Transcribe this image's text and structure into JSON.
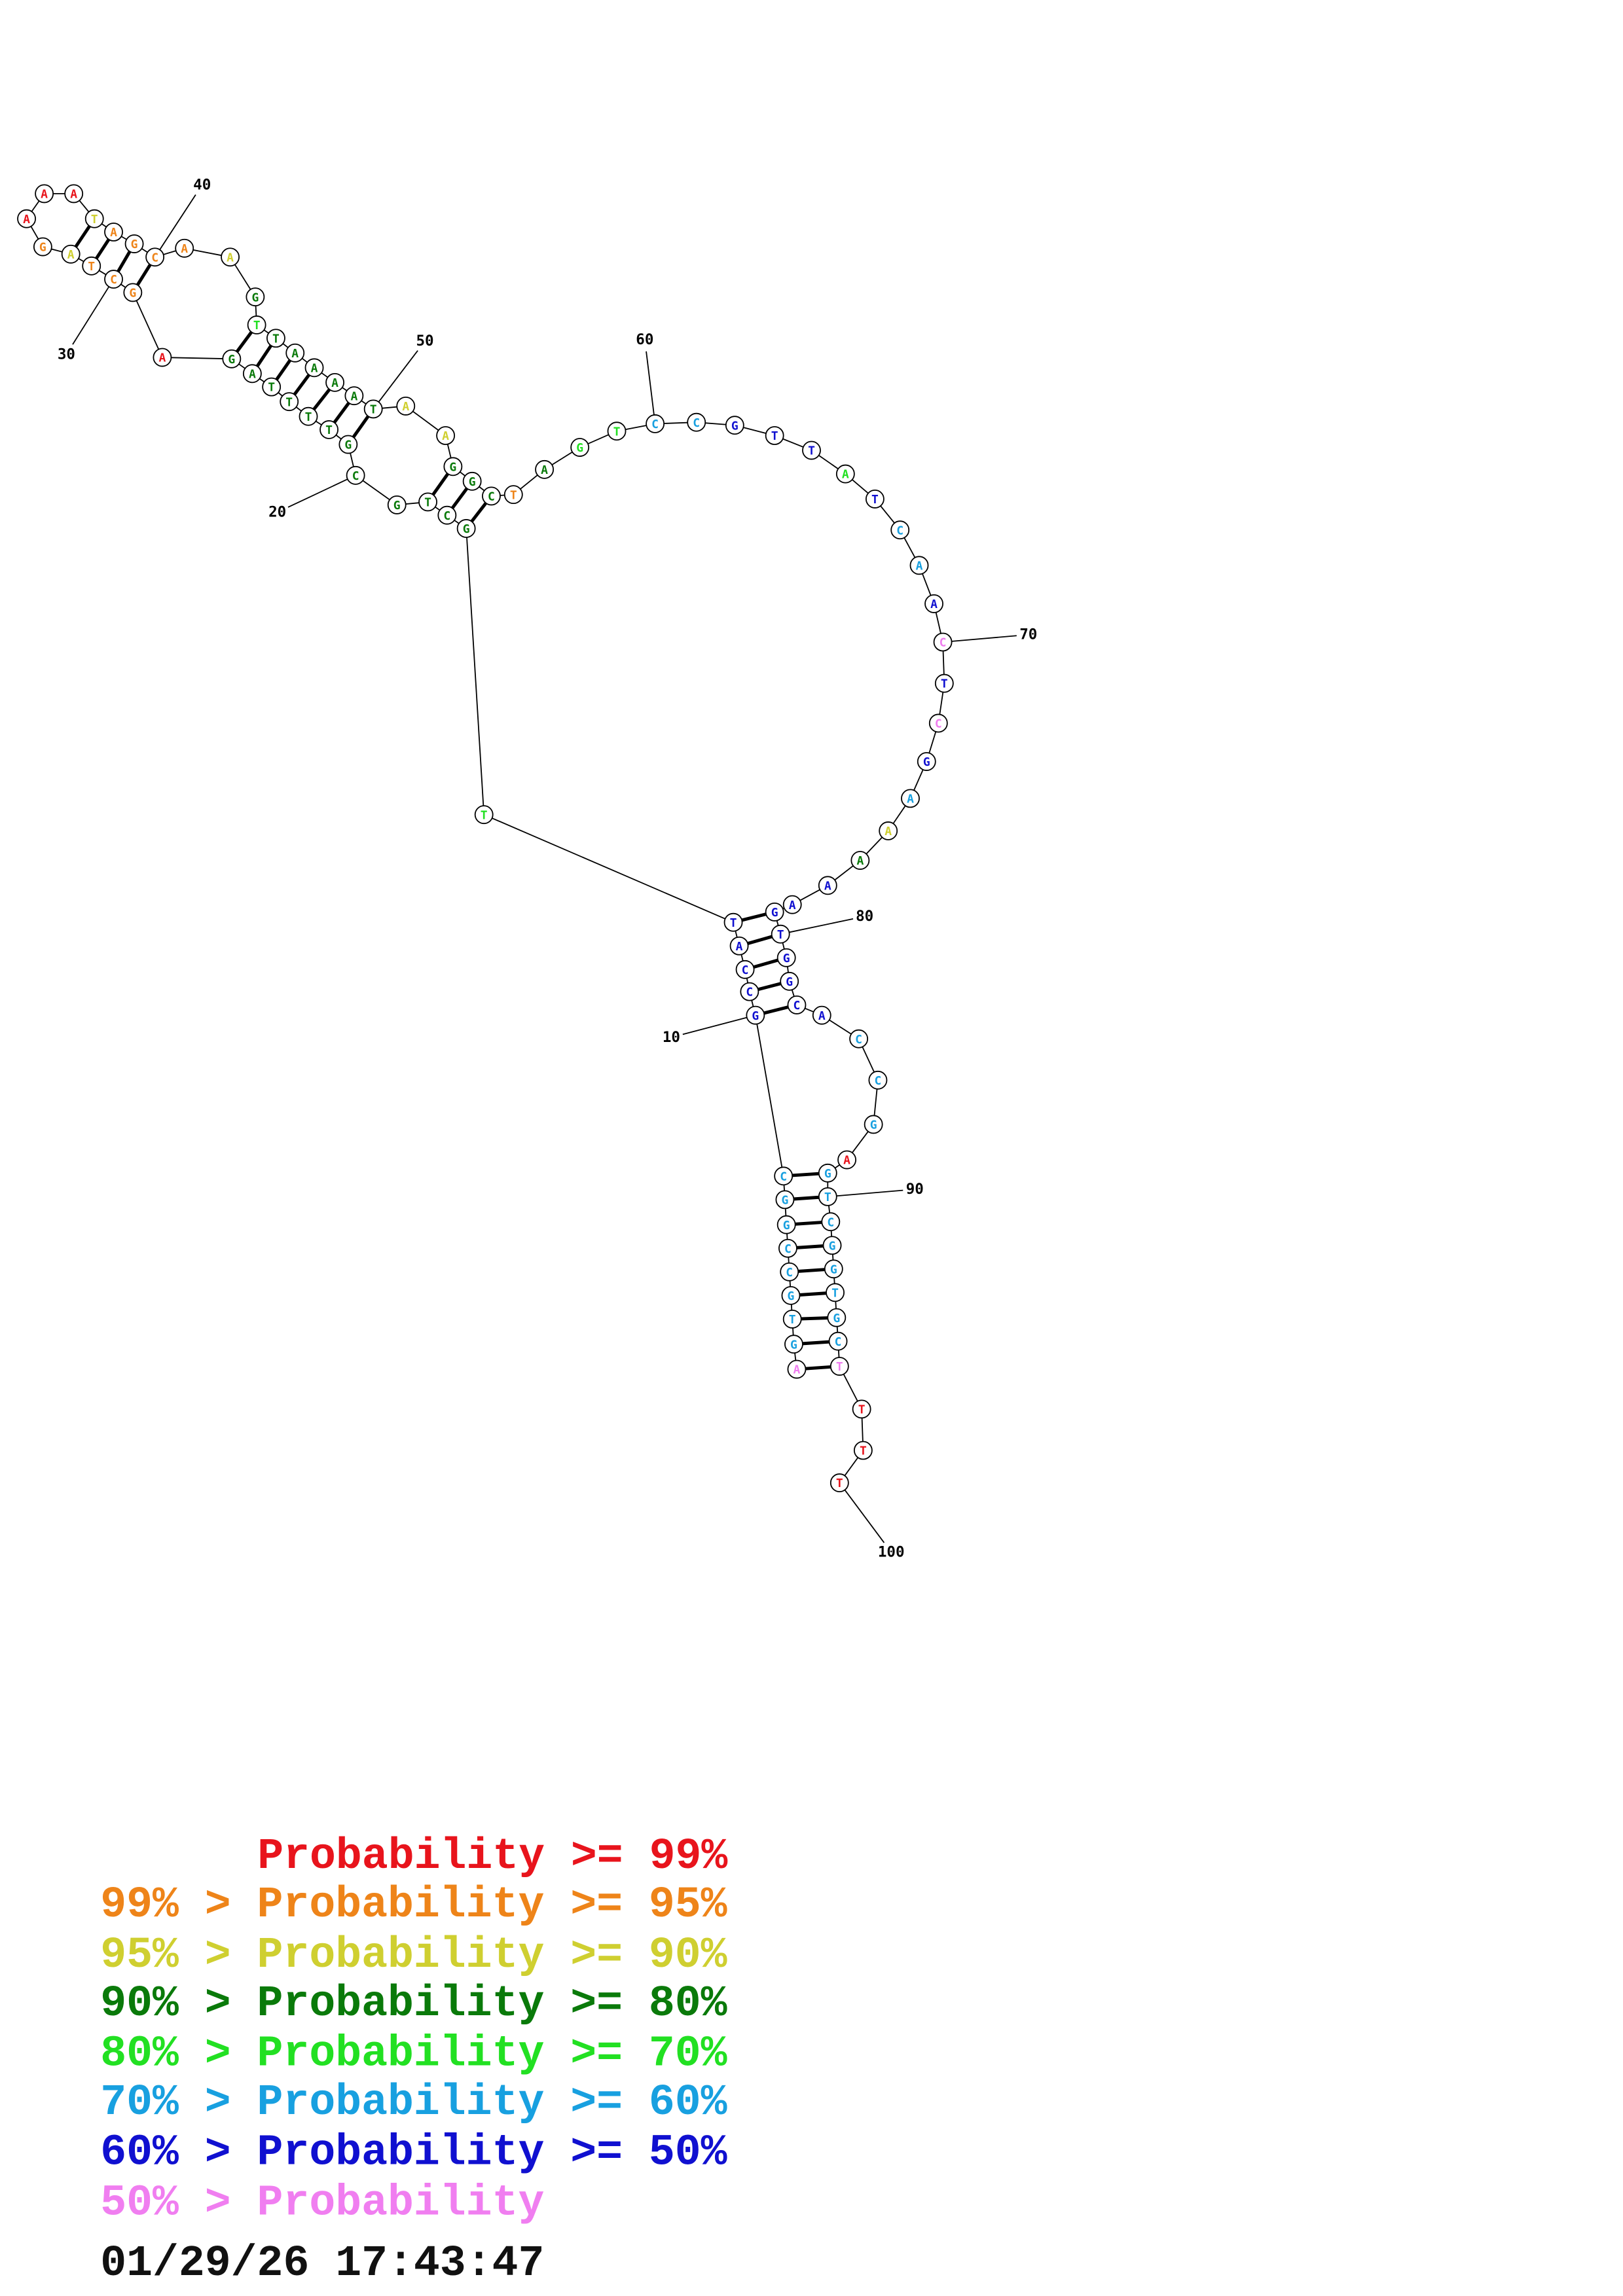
{
  "sequence": [
    {
      "base": "A",
      "color": "#f07ef0"
    },
    {
      "base": "G",
      "color": "#18a0e0"
    },
    {
      "base": "T",
      "color": "#18a0e0"
    },
    {
      "base": "G",
      "color": "#18a0e0"
    },
    {
      "base": "C",
      "color": "#18a0e0"
    },
    {
      "base": "C",
      "color": "#18a0e0"
    },
    {
      "base": "G",
      "color": "#18a0e0"
    },
    {
      "base": "G",
      "color": "#18a0e0"
    },
    {
      "base": "C",
      "color": "#18a0e0"
    },
    {
      "base": "G",
      "color": "#1010d0"
    },
    {
      "base": "C",
      "color": "#1010d0"
    },
    {
      "base": "C",
      "color": "#1010d0"
    },
    {
      "base": "A",
      "color": "#1010d0"
    },
    {
      "base": "T",
      "color": "#1010d0"
    },
    {
      "base": "T",
      "color": "#22e022"
    },
    {
      "base": "G",
      "color": "#0a7a0a"
    },
    {
      "base": "C",
      "color": "#0a7a0a"
    },
    {
      "base": "T",
      "color": "#0a7a0a"
    },
    {
      "base": "G",
      "color": "#0a7a0a"
    },
    {
      "base": "C",
      "color": "#0a7a0a"
    },
    {
      "base": "G",
      "color": "#0a7a0a"
    },
    {
      "base": "T",
      "color": "#0a7a0a"
    },
    {
      "base": "T",
      "color": "#0a7a0a"
    },
    {
      "base": "T",
      "color": "#0a7a0a"
    },
    {
      "base": "T",
      "color": "#0a7a0a"
    },
    {
      "base": "A",
      "color": "#0a7a0a"
    },
    {
      "base": "G",
      "color": "#0a7a0a"
    },
    {
      "base": "A",
      "color": "#e8141c"
    },
    {
      "base": "G",
      "color": "#ee8419"
    },
    {
      "base": "C",
      "color": "#ee8419"
    },
    {
      "base": "T",
      "color": "#ee8419"
    },
    {
      "base": "A",
      "color": "#cfcf30"
    },
    {
      "base": "G",
      "color": "#ee8419"
    },
    {
      "base": "A",
      "color": "#e8141c"
    },
    {
      "base": "A",
      "color": "#e8141c"
    },
    {
      "base": "A",
      "color": "#e8141c"
    },
    {
      "base": "T",
      "color": "#cfcf30"
    },
    {
      "base": "A",
      "color": "#ee8419"
    },
    {
      "base": "G",
      "color": "#ee8419"
    },
    {
      "base": "C",
      "color": "#ee8419"
    },
    {
      "base": "A",
      "color": "#ee8419"
    },
    {
      "base": "A",
      "color": "#cfcf30"
    },
    {
      "base": "G",
      "color": "#0a7a0a"
    },
    {
      "base": "T",
      "color": "#22e022"
    },
    {
      "base": "T",
      "color": "#0a7a0a"
    },
    {
      "base": "A",
      "color": "#0a7a0a"
    },
    {
      "base": "A",
      "color": "#0a7a0a"
    },
    {
      "base": "A",
      "color": "#0a7a0a"
    },
    {
      "base": "A",
      "color": "#0a7a0a"
    },
    {
      "base": "T",
      "color": "#0a7a0a"
    },
    {
      "base": "A",
      "color": "#cfcf30"
    },
    {
      "base": "A",
      "color": "#cfcf30"
    },
    {
      "base": "G",
      "color": "#0a7a0a"
    },
    {
      "base": "G",
      "color": "#0a7a0a"
    },
    {
      "base": "C",
      "color": "#0a7a0a"
    },
    {
      "base": "T",
      "color": "#ee8419"
    },
    {
      "base": "A",
      "color": "#0a7a0a"
    },
    {
      "base": "G",
      "color": "#22e022"
    },
    {
      "base": "T",
      "color": "#22e022"
    },
    {
      "base": "C",
      "color": "#18a0e0"
    },
    {
      "base": "C",
      "color": "#18a0e0"
    },
    {
      "base": "G",
      "color": "#1010d0"
    },
    {
      "base": "T",
      "color": "#1010d0"
    },
    {
      "base": "T",
      "color": "#1010d0"
    },
    {
      "base": "A",
      "color": "#22e022"
    },
    {
      "base": "T",
      "color": "#1010d0"
    },
    {
      "base": "C",
      "color": "#18a0e0"
    },
    {
      "base": "A",
      "color": "#18a0e0"
    },
    {
      "base": "A",
      "color": "#1010d0"
    },
    {
      "base": "C",
      "color": "#f07ef0"
    },
    {
      "base": "T",
      "color": "#1010d0"
    },
    {
      "base": "C",
      "color": "#f07ef0"
    },
    {
      "base": "G",
      "color": "#1010d0"
    },
    {
      "base": "A",
      "color": "#18a0e0"
    },
    {
      "base": "A",
      "color": "#cfcf30"
    },
    {
      "base": "A",
      "color": "#0a7a0a"
    },
    {
      "base": "A",
      "color": "#1010d0"
    },
    {
      "base": "A",
      "color": "#1010d0"
    },
    {
      "base": "G",
      "color": "#1010d0"
    },
    {
      "base": "T",
      "color": "#1010d0"
    },
    {
      "base": "G",
      "color": "#1010d0"
    },
    {
      "base": "G",
      "color": "#1010d0"
    },
    {
      "base": "C",
      "color": "#1010d0"
    },
    {
      "base": "A",
      "color": "#1010d0"
    },
    {
      "base": "C",
      "color": "#18a0e0"
    },
    {
      "base": "C",
      "color": "#18a0e0"
    },
    {
      "base": "G",
      "color": "#18a0e0"
    },
    {
      "base": "A",
      "color": "#e8141c"
    },
    {
      "base": "G",
      "color": "#18a0e0"
    },
    {
      "base": "T",
      "color": "#18a0e0"
    },
    {
      "base": "C",
      "color": "#18a0e0"
    },
    {
      "base": "G",
      "color": "#18a0e0"
    },
    {
      "base": "G",
      "color": "#18a0e0"
    },
    {
      "base": "T",
      "color": "#18a0e0"
    },
    {
      "base": "G",
      "color": "#18a0e0"
    },
    {
      "base": "C",
      "color": "#18a0e0"
    },
    {
      "base": "T",
      "color": "#f07ef0"
    },
    {
      "base": "T",
      "color": "#e8141c"
    },
    {
      "base": "T",
      "color": "#e8141c"
    },
    {
      "base": "T",
      "color": "#e8141c"
    }
  ],
  "position_labels": [
    10,
    20,
    30,
    40,
    50,
    60,
    70,
    80,
    90,
    100
  ],
  "legend": [
    {
      "text": "Probability >= 99%",
      "color": "#e8141c"
    },
    {
      "text": "99% > Probability >= 95%",
      "color": "#ee8419"
    },
    {
      "text": "95% > Probability >= 90%",
      "color": "#cfcf30"
    },
    {
      "text": "90% > Probability >= 80%",
      "color": "#0a7a0a"
    },
    {
      "text": "80% > Probability >= 70%",
      "color": "#22e022"
    },
    {
      "text": "70% > Probability >= 60%",
      "color": "#18a0e0"
    },
    {
      "text": "60% > Probability >= 50%",
      "color": "#1010d0"
    },
    {
      "text": "50% > Probability",
      "color": "#f07ef0"
    }
  ],
  "timestamp": "01/29/26 17:43:47"
}
